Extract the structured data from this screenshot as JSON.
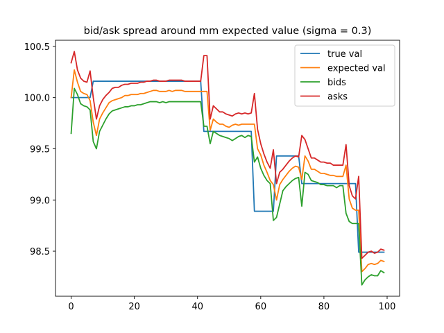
{
  "chart_data": {
    "type": "line",
    "title": "bid/ask spread around mm expected value (sigma = 0.3)",
    "xlabel": "",
    "ylabel": "",
    "xlim": [
      -4.95,
      103.95
    ],
    "ylim": [
      98.06,
      100.56
    ],
    "xticks": [
      0,
      20,
      40,
      60,
      80,
      100
    ],
    "yticks": [
      98.5,
      99.0,
      99.5,
      100.0,
      100.5
    ],
    "ytick_labels": [
      "98.5",
      "99.0",
      "99.5",
      "100.0",
      "100.5"
    ],
    "grid": false,
    "legend_position": "upper right",
    "series": [
      {
        "name": "true val",
        "color": "#1f77b4",
        "x": [
          0,
          6,
          7,
          41,
          42,
          57,
          58,
          64,
          65,
          72,
          73,
          90,
          91,
          99
        ],
        "y": [
          100.0,
          100.0,
          100.16,
          100.16,
          99.67,
          99.67,
          98.89,
          98.89,
          99.43,
          99.43,
          99.16,
          99.16,
          98.49,
          98.49
        ]
      },
      {
        "name": "expected val",
        "color": "#ff7f0e",
        "x": [
          0,
          1,
          2,
          3,
          4,
          5,
          6,
          7,
          8,
          9,
          10,
          11,
          12,
          13,
          14,
          15,
          16,
          17,
          18,
          19,
          20,
          21,
          22,
          23,
          24,
          25,
          26,
          27,
          28,
          29,
          30,
          31,
          32,
          33,
          34,
          35,
          36,
          37,
          38,
          39,
          40,
          41,
          42,
          43,
          44,
          45,
          46,
          47,
          48,
          49,
          50,
          51,
          52,
          53,
          54,
          55,
          56,
          57,
          58,
          59,
          60,
          61,
          62,
          63,
          64,
          65,
          66,
          67,
          68,
          69,
          70,
          71,
          72,
          73,
          74,
          75,
          76,
          77,
          78,
          79,
          80,
          81,
          82,
          83,
          84,
          85,
          86,
          87,
          88,
          89,
          90,
          91,
          92,
          93,
          94,
          95,
          96,
          97,
          98,
          99
        ],
        "y": [
          100.0,
          100.27,
          100.15,
          100.06,
          100.04,
          100.03,
          99.97,
          99.76,
          99.63,
          99.79,
          99.85,
          99.9,
          99.95,
          99.97,
          99.98,
          99.99,
          100.0,
          100.02,
          100.02,
          100.03,
          100.03,
          100.03,
          100.04,
          100.04,
          100.05,
          100.06,
          100.07,
          100.07,
          100.06,
          100.06,
          100.06,
          100.07,
          100.06,
          100.07,
          100.07,
          100.07,
          100.06,
          100.06,
          100.06,
          100.06,
          100.06,
          100.06,
          100.06,
          100.06,
          99.68,
          99.79,
          99.76,
          99.74,
          99.74,
          99.72,
          99.71,
          99.73,
          99.74,
          99.73,
          99.74,
          99.74,
          99.74,
          99.74,
          99.74,
          99.5,
          99.44,
          99.34,
          99.27,
          99.19,
          99.15,
          99.0,
          99.15,
          99.2,
          99.24,
          99.28,
          99.31,
          99.33,
          99.32,
          99.2,
          99.43,
          99.38,
          99.3,
          99.3,
          99.28,
          99.26,
          99.26,
          99.25,
          99.24,
          99.24,
          99.23,
          99.23,
          99.23,
          99.34,
          99.01,
          98.92,
          98.9,
          98.9,
          98.3,
          98.33,
          98.37,
          98.38,
          98.37,
          98.38,
          98.41,
          98.4
        ]
      },
      {
        "name": "bids",
        "color": "#2ca02c",
        "x": [
          0,
          1,
          2,
          3,
          4,
          5,
          6,
          7,
          8,
          9,
          10,
          11,
          12,
          13,
          14,
          15,
          16,
          17,
          18,
          19,
          20,
          21,
          22,
          23,
          24,
          25,
          26,
          27,
          28,
          29,
          30,
          31,
          32,
          33,
          34,
          35,
          36,
          37,
          38,
          39,
          40,
          41,
          42,
          43,
          44,
          45,
          46,
          47,
          48,
          49,
          50,
          51,
          52,
          53,
          54,
          55,
          56,
          57,
          58,
          59,
          60,
          61,
          62,
          63,
          64,
          65,
          66,
          67,
          68,
          69,
          70,
          71,
          72,
          73,
          74,
          75,
          76,
          77,
          78,
          79,
          80,
          81,
          82,
          83,
          84,
          85,
          86,
          87,
          88,
          89,
          90,
          91,
          92,
          93,
          94,
          95,
          96,
          97,
          98,
          99
        ],
        "y": [
          99.65,
          100.09,
          100.03,
          99.94,
          99.92,
          99.91,
          99.88,
          99.57,
          99.5,
          99.67,
          99.73,
          99.79,
          99.84,
          99.87,
          99.88,
          99.89,
          99.9,
          99.91,
          99.91,
          99.92,
          99.92,
          99.93,
          99.93,
          99.94,
          99.95,
          99.96,
          99.96,
          99.96,
          99.95,
          99.96,
          99.95,
          99.96,
          99.96,
          99.96,
          99.96,
          99.96,
          99.96,
          99.96,
          99.96,
          99.96,
          99.96,
          99.96,
          99.72,
          99.72,
          99.55,
          99.67,
          99.65,
          99.63,
          99.62,
          99.61,
          99.6,
          99.58,
          99.6,
          99.62,
          99.63,
          99.61,
          99.63,
          99.62,
          99.37,
          99.42,
          99.31,
          99.24,
          99.19,
          99.16,
          98.8,
          98.83,
          98.96,
          99.09,
          99.13,
          99.16,
          99.19,
          99.21,
          99.22,
          98.94,
          99.27,
          99.25,
          99.19,
          99.18,
          99.17,
          99.15,
          99.15,
          99.14,
          99.14,
          99.14,
          99.12,
          99.14,
          99.14,
          98.87,
          98.79,
          98.77,
          98.77,
          98.77,
          98.17,
          98.22,
          98.25,
          98.27,
          98.26,
          98.26,
          98.31,
          98.29
        ]
      },
      {
        "name": "asks",
        "color": "#d62728",
        "x": [
          0,
          1,
          2,
          3,
          4,
          5,
          6,
          7,
          8,
          9,
          10,
          11,
          12,
          13,
          14,
          15,
          16,
          17,
          18,
          19,
          20,
          21,
          22,
          23,
          24,
          25,
          26,
          27,
          28,
          29,
          30,
          31,
          32,
          33,
          34,
          35,
          36,
          37,
          38,
          39,
          40,
          41,
          42,
          43,
          44,
          45,
          46,
          47,
          48,
          49,
          50,
          51,
          52,
          53,
          54,
          55,
          56,
          57,
          58,
          59,
          60,
          61,
          62,
          63,
          64,
          65,
          66,
          67,
          68,
          69,
          70,
          71,
          72,
          73,
          74,
          75,
          76,
          77,
          78,
          79,
          80,
          81,
          82,
          83,
          84,
          85,
          86,
          87,
          88,
          89,
          90,
          91,
          92,
          93,
          94,
          95,
          96,
          97,
          98,
          99
        ],
        "y": [
          100.34,
          100.45,
          100.27,
          100.19,
          100.16,
          100.15,
          100.26,
          100.0,
          99.79,
          99.92,
          99.98,
          100.02,
          100.05,
          100.09,
          100.1,
          100.1,
          100.12,
          100.13,
          100.13,
          100.14,
          100.14,
          100.14,
          100.15,
          100.15,
          100.16,
          100.16,
          100.17,
          100.17,
          100.16,
          100.16,
          100.16,
          100.17,
          100.17,
          100.17,
          100.17,
          100.17,
          100.16,
          100.16,
          100.16,
          100.16,
          100.16,
          100.16,
          100.41,
          100.41,
          99.79,
          99.92,
          99.89,
          99.86,
          99.86,
          99.84,
          99.83,
          99.82,
          99.84,
          99.85,
          99.84,
          99.85,
          99.84,
          99.85,
          100.04,
          99.69,
          99.55,
          99.45,
          99.37,
          99.31,
          99.49,
          99.16,
          99.27,
          99.3,
          99.34,
          99.38,
          99.41,
          99.43,
          99.42,
          99.63,
          99.59,
          99.5,
          99.41,
          99.41,
          99.39,
          99.37,
          99.37,
          99.36,
          99.36,
          99.34,
          99.34,
          99.34,
          99.34,
          99.54,
          99.14,
          99.04,
          99.01,
          99.23,
          98.43,
          98.46,
          98.49,
          98.5,
          98.48,
          98.49,
          98.52,
          98.51
        ]
      }
    ]
  }
}
